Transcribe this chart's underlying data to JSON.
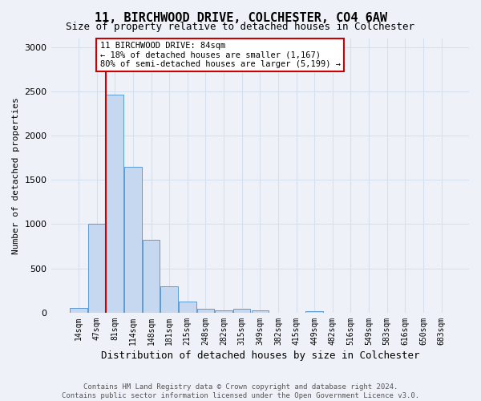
{
  "title": "11, BIRCHWOOD DRIVE, COLCHESTER, CO4 6AW",
  "subtitle": "Size of property relative to detached houses in Colchester",
  "xlabel": "Distribution of detached houses by size in Colchester",
  "ylabel": "Number of detached properties",
  "footer_line1": "Contains HM Land Registry data © Crown copyright and database right 2024.",
  "footer_line2": "Contains public sector information licensed under the Open Government Licence v3.0.",
  "annotation_text": "11 BIRCHWOOD DRIVE: 84sqm\n← 18% of detached houses are smaller (1,167)\n80% of semi-detached houses are larger (5,199) →",
  "vline_bin_index": 2,
  "categories": [
    "14sqm",
    "47sqm",
    "81sqm",
    "114sqm",
    "148sqm",
    "181sqm",
    "215sqm",
    "248sqm",
    "282sqm",
    "315sqm",
    "349sqm",
    "382sqm",
    "415sqm",
    "449sqm",
    "482sqm",
    "516sqm",
    "549sqm",
    "583sqm",
    "616sqm",
    "650sqm",
    "683sqm"
  ],
  "bar_values": [
    50,
    1000,
    2460,
    1650,
    820,
    300,
    130,
    45,
    30,
    45,
    25,
    0,
    0,
    20,
    0,
    0,
    0,
    0,
    0,
    0,
    0
  ],
  "bar_color": "#c5d8f0",
  "bar_edge_color": "#5b9bd5",
  "vline_color": "#cc0000",
  "annotation_box_edgecolor": "#cc0000",
  "ylim": [
    0,
    3100
  ],
  "yticks": [
    0,
    500,
    1000,
    1500,
    2000,
    2500,
    3000
  ],
  "grid_color": "#d5e0ec",
  "bg_color": "#eef2f8",
  "title_fontsize": 11,
  "subtitle_fontsize": 9,
  "ylabel_fontsize": 8,
  "xlabel_fontsize": 9,
  "tick_fontsize": 7,
  "annotation_fontsize": 7.5,
  "footer_fontsize": 6.5
}
